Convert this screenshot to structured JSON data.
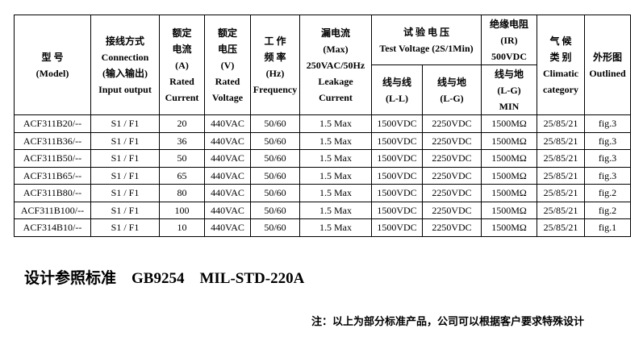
{
  "header": {
    "model": [
      "型 号",
      "(Model)"
    ],
    "connection": [
      "接线方式",
      "Connection",
      "(输入输出)",
      "Input output"
    ],
    "current": [
      "额定",
      "电流",
      "(A)",
      "Rated",
      "Current"
    ],
    "voltage": [
      "额定",
      "电压",
      "(V)",
      "Rated",
      "Voltage"
    ],
    "frequency": [
      "工 作",
      "频 率",
      "(Hz)",
      "Frequency"
    ],
    "leakage": [
      "漏电流",
      "(Max)",
      "250VAC/50Hz",
      "Leakage",
      "Current"
    ],
    "test_voltage": [
      "试 验 电 压",
      "Test Voltage (2S/1Min)"
    ],
    "ll": [
      "线与线",
      "(L-L)"
    ],
    "lg": [
      "线与地",
      "(L-G)"
    ],
    "ir": [
      "绝缘电阻",
      "(IR)",
      "500VDC"
    ],
    "ir_lg": [
      "线与地",
      "(L-G)",
      "MIN"
    ],
    "climatic": [
      "气 候",
      "类 别",
      "Climatic",
      "category"
    ],
    "outlined": [
      "外形图",
      "Outlined"
    ]
  },
  "rows": [
    [
      "ACF311B20/--",
      "S1 / F1",
      "20",
      "440VAC",
      "50/60",
      "1.5 Max",
      "1500VDC",
      "2250VDC",
      "1500MΩ",
      "25/85/21",
      "fig.3"
    ],
    [
      "ACF311B36/--",
      "S1 / F1",
      "36",
      "440VAC",
      "50/60",
      "1.5 Max",
      "1500VDC",
      "2250VDC",
      "1500MΩ",
      "25/85/21",
      "fig.3"
    ],
    [
      "ACF311B50/--",
      "S1 / F1",
      "50",
      "440VAC",
      "50/60",
      "1.5 Max",
      "1500VDC",
      "2250VDC",
      "1500MΩ",
      "25/85/21",
      "fig.3"
    ],
    [
      "ACF311B65/--",
      "S1 / F1",
      "65",
      "440VAC",
      "50/60",
      "1.5 Max",
      "1500VDC",
      "2250VDC",
      "1500MΩ",
      "25/85/21",
      "fig.3"
    ],
    [
      "ACF311B80/--",
      "S1 / F1",
      "80",
      "440VAC",
      "50/60",
      "1.5 Max",
      "1500VDC",
      "2250VDC",
      "1500MΩ",
      "25/85/21",
      "fig.2"
    ],
    [
      "ACF311B100/--",
      "S1 / F1",
      "100",
      "440VAC",
      "50/60",
      "1.5 Max",
      "1500VDC",
      "2250VDC",
      "1500MΩ",
      "25/85/21",
      "fig.2"
    ],
    [
      "ACF314B10/--",
      "S1 / F1",
      "10",
      "440VAC",
      "50/60",
      "1.5 Max",
      "1500VDC",
      "2250VDC",
      "1500MΩ",
      "25/85/21",
      "fig.1"
    ]
  ],
  "standards": "设计参照标准    GB9254    MIL-STD-220A",
  "note": "注：以上为部分标准产品，公司可以根据客户要求特殊设计"
}
